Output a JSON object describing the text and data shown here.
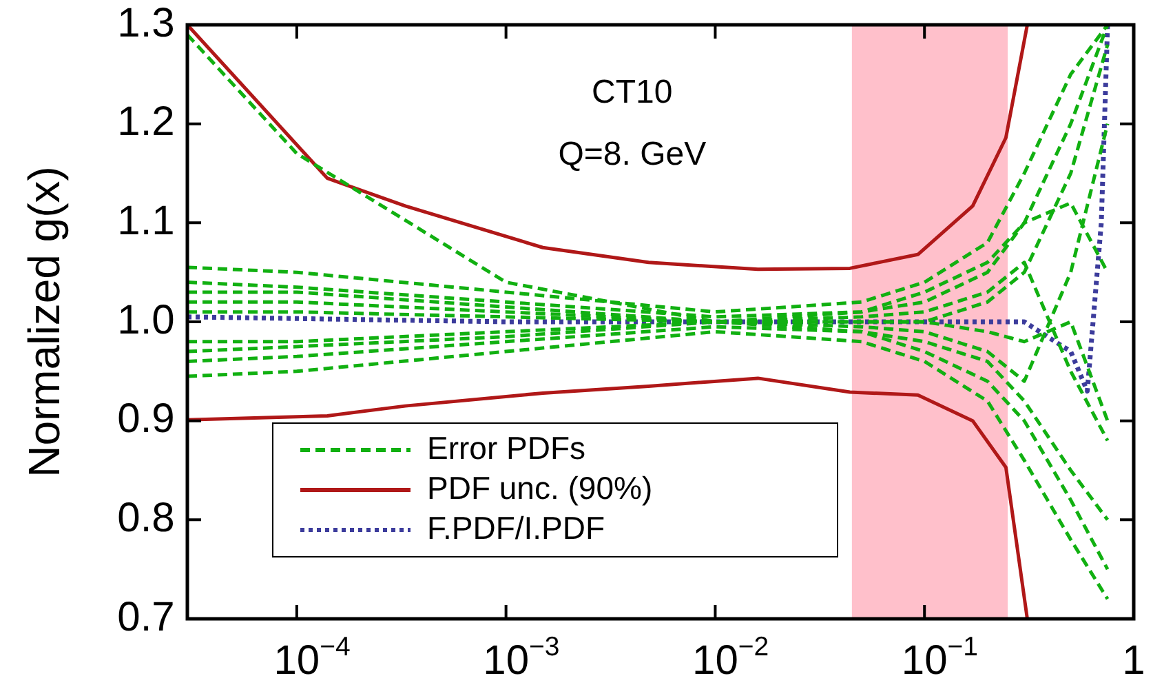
{
  "chart_data": {
    "type": "line",
    "ylabel": "Normalized g(x)",
    "annotations": [
      "CT10",
      "Q=8. GeV"
    ],
    "xlim": [
      3e-05,
      1
    ],
    "xticks": [
      {
        "value": 0.0001,
        "label": "10$^{−4}$"
      },
      {
        "value": 0.001,
        "label": "10$^{−3}$"
      },
      {
        "value": 0.01,
        "label": "10$^{−2}$"
      },
      {
        "value": 0.1,
        "label": "10$^{−1}$"
      },
      1
    ],
    "ylim": [
      0.7,
      1.3
    ],
    "yticks": [
      0.7,
      0.8,
      0.9,
      {
        "value": 1,
        "label": "1.0"
      },
      1.1,
      1.2,
      1.3
    ],
    "log": "x",
    "grid": false,
    "legend": "bottom left",
    "bands": [
      {
        "axis": "x",
        "from": 0.045,
        "to": 0.25,
        "color": "#ffc0cb"
      }
    ],
    "series": [
      {
        "name": "Error PDFs",
        "color": "#11b011",
        "line_style": "dashed",
        "x": [
          3e-05,
          0.0001,
          0.001,
          0.01,
          0.05,
          0.1,
          0.2,
          0.3,
          0.5,
          0.75
        ],
        "values": [
          1.29,
          1.17,
          1.04,
          1.0,
          1.0,
          1.0,
          1.02,
          1.05,
          1.15,
          1.28
        ]
      },
      {
        "color": "#11b011",
        "line_style": "dashed",
        "x": [
          3e-05,
          0.0001,
          0.001,
          0.01,
          0.05,
          0.1,
          0.2,
          0.3,
          0.5,
          0.75
        ],
        "values": [
          1.055,
          1.05,
          1.03,
          1.01,
          1.02,
          1.04,
          1.08,
          1.15,
          1.25,
          1.3
        ]
      },
      {
        "color": "#11b011",
        "line_style": "dashed",
        "x": [
          3e-05,
          0.0001,
          0.001,
          0.01,
          0.05,
          0.1,
          0.2,
          0.3,
          0.5,
          0.75
        ],
        "values": [
          0.945,
          0.95,
          0.97,
          0.99,
          0.98,
          0.96,
          0.92,
          0.86,
          0.78,
          0.72
        ]
      },
      {
        "color": "#11b011",
        "line_style": "dashed",
        "x": [
          3e-05,
          0.0001,
          0.001,
          0.01,
          0.05,
          0.1,
          0.2,
          0.3,
          0.5,
          0.75
        ],
        "values": [
          1.04,
          1.035,
          1.02,
          1.005,
          1.01,
          1.02,
          1.05,
          1.1,
          1.12,
          1.05
        ]
      },
      {
        "color": "#11b011",
        "line_style": "dashed",
        "x": [
          3e-05,
          0.0001,
          0.001,
          0.01,
          0.05,
          0.1,
          0.2,
          0.3,
          0.5,
          0.75
        ],
        "values": [
          0.96,
          0.965,
          0.98,
          0.995,
          0.99,
          0.98,
          0.96,
          0.92,
          0.85,
          0.8
        ]
      },
      {
        "color": "#11b011",
        "line_style": "dashed",
        "x": [
          3e-05,
          0.0001,
          0.001,
          0.01,
          0.05,
          0.1,
          0.2,
          0.3,
          0.5,
          0.75
        ],
        "values": [
          1.02,
          1.02,
          1.01,
          1.0,
          1.005,
          1.01,
          1.03,
          1.06,
          0.95,
          0.88
        ]
      },
      {
        "color": "#11b011",
        "line_style": "dashed",
        "x": [
          3e-05,
          0.0001,
          0.001,
          0.01,
          0.05,
          0.1,
          0.2,
          0.3,
          0.5,
          0.75
        ],
        "values": [
          0.98,
          0.98,
          0.99,
          1.0,
          0.995,
          0.99,
          0.97,
          0.94,
          1.05,
          1.2
        ]
      },
      {
        "color": "#11b011",
        "line_style": "dashed",
        "x": [
          3e-05,
          0.0001,
          0.001,
          0.01,
          0.05,
          0.1,
          0.2,
          0.3,
          0.5,
          0.75
        ],
        "values": [
          1.03,
          1.03,
          1.015,
          1.0,
          0.99,
          0.97,
          0.94,
          0.9,
          0.82,
          0.75
        ]
      },
      {
        "color": "#11b011",
        "line_style": "dashed",
        "x": [
          3e-05,
          0.0001,
          0.001,
          0.01,
          0.05,
          0.1,
          0.2,
          0.3,
          0.5,
          0.75
        ],
        "values": [
          0.97,
          0.975,
          0.985,
          1.0,
          1.01,
          1.03,
          1.06,
          1.1,
          1.2,
          1.3
        ]
      },
      {
        "color": "#11b011",
        "line_style": "dashed",
        "x": [
          3e-05,
          0.0001,
          0.001,
          0.01,
          0.05,
          0.1,
          0.2,
          0.3,
          0.5,
          0.75
        ],
        "values": [
          1.01,
          1.01,
          1.005,
          1.0,
          1.0,
          1.0,
          0.99,
          0.98,
          1.0,
          0.9
        ]
      },
      {
        "name": "PDF unc. (90%)",
        "color": "#b01818",
        "line_style": "solid",
        "x": [
          3e-05,
          0.00014,
          0.00033,
          0.0015,
          0.0048,
          0.016,
          0.044,
          0.093,
          0.17,
          0.245,
          0.31
        ],
        "values": [
          1.3,
          1.145,
          1.117,
          1.075,
          1.06,
          1.053,
          1.054,
          1.068,
          1.117,
          1.186,
          1.3
        ]
      },
      {
        "color": "#b01818",
        "line_style": "solid",
        "x": [
          3e-05,
          0.00014,
          0.00033,
          0.0015,
          0.0048,
          0.016,
          0.044,
          0.093,
          0.17,
          0.245,
          0.31
        ],
        "values": [
          0.901,
          0.905,
          0.915,
          0.928,
          0.935,
          0.943,
          0.929,
          0.926,
          0.9,
          0.853,
          0.7
        ]
      },
      {
        "name": "F.PDF/I.PDF",
        "color": "#3c3c9c",
        "line_style": "dotted",
        "x": [
          3e-05,
          0.001,
          0.01,
          0.1,
          0.3,
          0.5,
          0.6,
          0.7,
          0.75
        ],
        "values": [
          1.005,
          1.0,
          1.0,
          1.0,
          1.0,
          0.97,
          0.93,
          1.1,
          1.3
        ]
      }
    ]
  }
}
